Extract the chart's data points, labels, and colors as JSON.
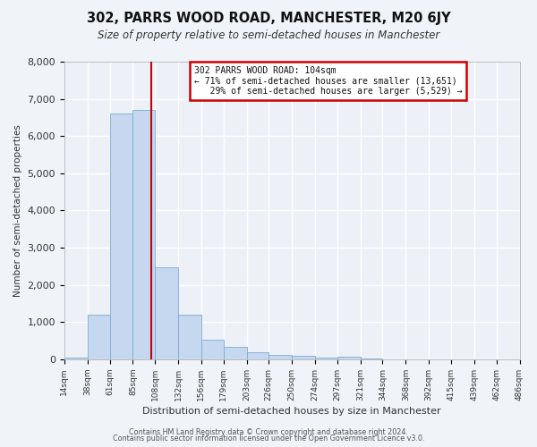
{
  "title": "302, PARRS WOOD ROAD, MANCHESTER, M20 6JY",
  "subtitle": "Size of property relative to semi-detached houses in Manchester",
  "xlabel": "Distribution of semi-detached houses by size in Manchester",
  "ylabel": "Number of semi-detached properties",
  "bar_color": "#c5d8ef",
  "bar_edge_color": "#7aadd4",
  "background_color": "#f0f3f8",
  "plot_bg_color": "#edf1f7",
  "grid_color": "#ffffff",
  "vline_x": 104,
  "vline_color": "#cc0000",
  "annotation_line1": "302 PARRS WOOD ROAD: 104sqm",
  "annotation_line2": "← 71% of semi-detached houses are smaller (13,651)",
  "annotation_line3": "   29% of semi-detached houses are larger (5,529) →",
  "annotation_box_color": "#ffffff",
  "annotation_box_edge": "#cc0000",
  "bin_edges": [
    14,
    38,
    61,
    85,
    108,
    132,
    156,
    179,
    203,
    226,
    250,
    274,
    297,
    321,
    344,
    368,
    392,
    415,
    439,
    462,
    486
  ],
  "bar_heights": [
    55,
    1200,
    6600,
    6700,
    2480,
    1190,
    530,
    330,
    200,
    130,
    100,
    50,
    80,
    30,
    0,
    0,
    0,
    0,
    0,
    0
  ],
  "ylim": [
    0,
    8000
  ],
  "yticks": [
    0,
    1000,
    2000,
    3000,
    4000,
    5000,
    6000,
    7000,
    8000
  ],
  "footer_line1": "Contains HM Land Registry data © Crown copyright and database right 2024.",
  "footer_line2": "Contains public sector information licensed under the Open Government Licence v3.0."
}
